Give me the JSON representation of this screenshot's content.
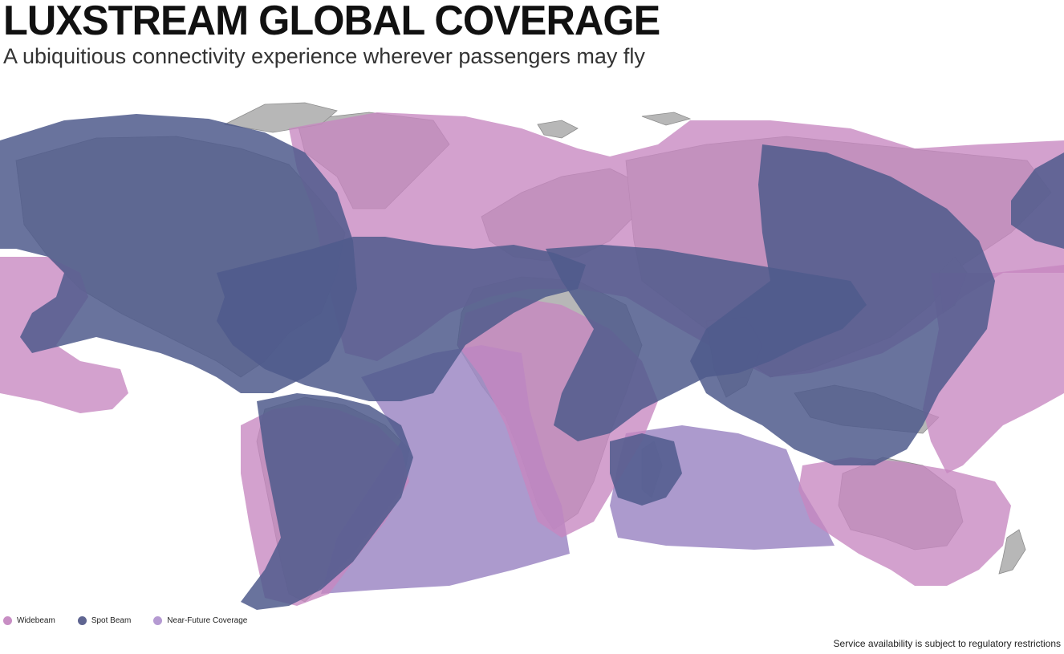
{
  "header": {
    "title": "LUXSTREAM GLOBAL COVERAGE",
    "subtitle": "A ubiquitious connectivity experience wherever passengers may fly"
  },
  "legend": [
    {
      "label": "Widebeam",
      "color": "#c88ec4"
    },
    {
      "label": "Spot Beam",
      "color": "#5f6591"
    },
    {
      "label": "Near-Future Coverage",
      "color": "#b59ad2"
    }
  ],
  "map": {
    "land_color": "#b7b7b7",
    "widebeam_color": "#c687c0",
    "spotbeam_color": "#4f5a8c",
    "nearfuture_color": "#9d88c4"
  },
  "footnote": "Service availability is subject to regulatory restrictions"
}
